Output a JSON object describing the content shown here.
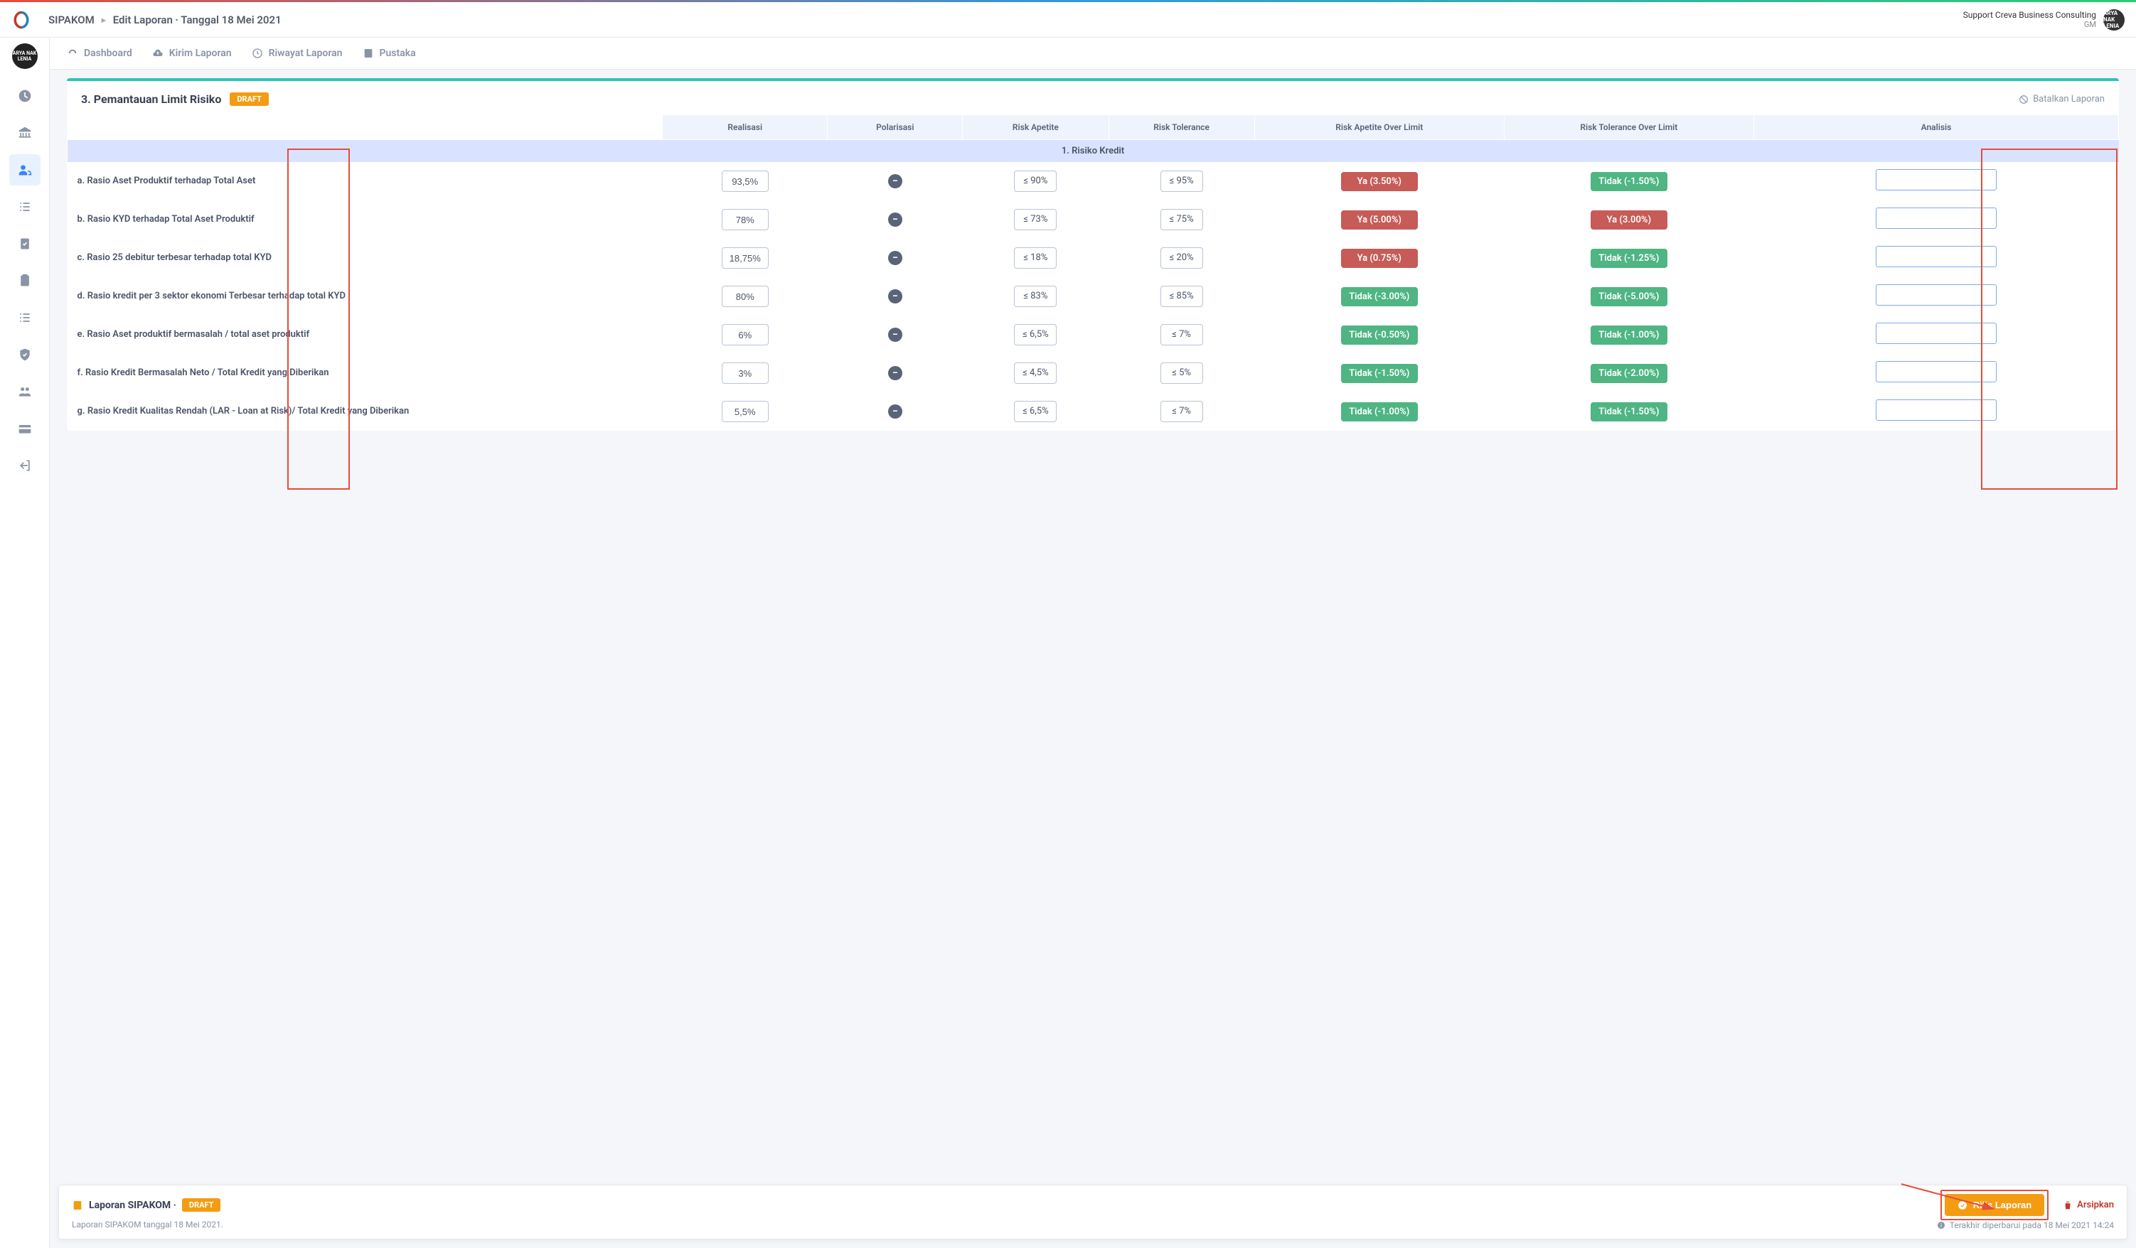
{
  "topbar": {
    "app_name": "SIPAKOM",
    "breadcrumb_page": "Edit Laporan · Tanggal 18 Mei 2021",
    "user_name": "Support Creva Business Consulting",
    "user_role": "GM"
  },
  "subnav": {
    "dashboard": "Dashboard",
    "kirim": "Kirim Laporan",
    "riwayat": "Riwayat Laporan",
    "pustaka": "Pustaka"
  },
  "panel": {
    "title": "3. Pemantauan Limit Risiko",
    "draft_badge": "DRAFT",
    "cancel_label": "Batalkan Laporan"
  },
  "columns": {
    "realisasi": "Realisasi",
    "polarisasi": "Polarisasi",
    "risk_apetite": "Risk Apetite",
    "risk_tolerance": "Risk Tolerance",
    "apetite_over": "Risk Apetite Over Limit",
    "tolerance_over": "Risk Tolerance Over Limit",
    "analisis": "Analisis"
  },
  "section": {
    "title": "1. Risiko Kredit"
  },
  "rows": [
    {
      "label": "a. Rasio Aset Produktif terhadap Total Aset",
      "realisasi": "93,5%",
      "apetite": "≤ 90%",
      "tolerance": "≤ 95%",
      "ao_text": "Ya (3.50%)",
      "ao_cls": "red",
      "to_text": "Tidak (-1.50%)",
      "to_cls": "green"
    },
    {
      "label": "b. Rasio KYD terhadap Total Aset Produktif",
      "realisasi": "78%",
      "apetite": "≤ 73%",
      "tolerance": "≤ 75%",
      "ao_text": "Ya (5.00%)",
      "ao_cls": "red",
      "to_text": "Ya (3.00%)",
      "to_cls": "red"
    },
    {
      "label": "c. Rasio 25 debitur terbesar terhadap total KYD",
      "realisasi": "18,75%",
      "apetite": "≤ 18%",
      "tolerance": "≤ 20%",
      "ao_text": "Ya (0.75%)",
      "ao_cls": "red",
      "to_text": "Tidak (-1.25%)",
      "to_cls": "green"
    },
    {
      "label": "d. Rasio kredit per 3 sektor ekonomi Terbesar terhadap total KYD",
      "realisasi": "80%",
      "apetite": "≤ 83%",
      "tolerance": "≤ 85%",
      "ao_text": "Tidak (-3.00%)",
      "ao_cls": "green",
      "to_text": "Tidak (-5.00%)",
      "to_cls": "green"
    },
    {
      "label": "e. Rasio Aset produktif bermasalah / total aset produktif",
      "realisasi": "6%",
      "apetite": "≤ 6,5%",
      "tolerance": "≤ 7%",
      "ao_text": "Tidak (-0.50%)",
      "ao_cls": "green",
      "to_text": "Tidak (-1.00%)",
      "to_cls": "green"
    },
    {
      "label": "f. Rasio Kredit Bermasalah Neto / Total Kredit yang Diberikan",
      "realisasi": "3%",
      "apetite": "≤ 4,5%",
      "tolerance": "≤ 5%",
      "ao_text": "Tidak (-1.50%)",
      "ao_cls": "green",
      "to_text": "Tidak (-2.00%)",
      "to_cls": "green"
    },
    {
      "label": "g. Rasio Kredit Kualitas Rendah (LAR - Loan at Risk)/ Total Kredit yang Diberikan",
      "realisasi": "5,5%",
      "apetite": "≤ 6,5%",
      "tolerance": "≤ 7%",
      "ao_text": "Tidak (-1.00%)",
      "ao_cls": "green",
      "to_text": "Tidak (-1.50%)",
      "to_cls": "green"
    }
  ],
  "footer": {
    "title": "Laporan SIPAKOM ·",
    "draft_badge": "DRAFT",
    "subtitle": "Laporan SIPAKOM tanggal 18 Mei 2021.",
    "release_label": "Rilis Laporan",
    "archive_label": "Arsipkan",
    "updated_label": "Terakhir diperbarui pada 18 Mei 2021 14:24"
  },
  "colors": {
    "accent_orange": "#f39c12",
    "status_red": "#c65b57",
    "status_green": "#4eb583",
    "highlight_red": "#e74c3c",
    "header_bg": "#eff3fb",
    "section_bg": "#d9e3ff"
  }
}
